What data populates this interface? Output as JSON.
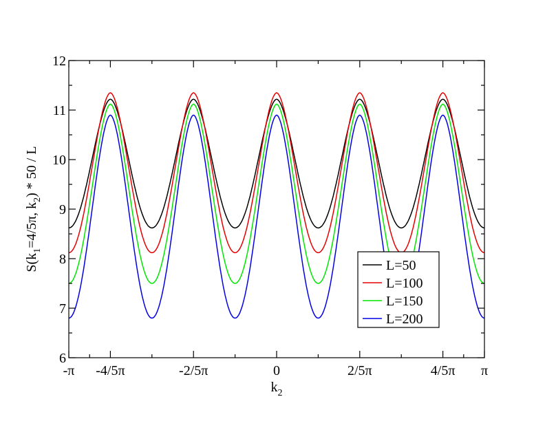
{
  "chart_data": {
    "type": "line",
    "xlabel": "k",
    "xlabel_sub": "2",
    "ylabel_parts": {
      "p1": "S(k",
      "p1_sub": "1",
      "p2": "=4/5π, k",
      "p2_sub": "2",
      "p3": ") * 50 / L"
    },
    "xlim": [
      -3.14159,
      3.14159
    ],
    "ylim": [
      6,
      12
    ],
    "x_ticks": [
      {
        "value": -3.14159,
        "label": "-π"
      },
      {
        "value": -2.51327,
        "label": "-4/5π"
      },
      {
        "value": -1.25664,
        "label": "-2/5π"
      },
      {
        "value": 0,
        "label": "0"
      },
      {
        "value": 1.25664,
        "label": "2/5π"
      },
      {
        "value": 2.51327,
        "label": "4/5π"
      },
      {
        "value": 3.14159,
        "label": "π"
      }
    ],
    "y_ticks": [
      {
        "value": 6,
        "label": "6"
      },
      {
        "value": 7,
        "label": "7"
      },
      {
        "value": 8,
        "label": "8"
      },
      {
        "value": 9,
        "label": "9"
      },
      {
        "value": 10,
        "label": "10"
      },
      {
        "value": 11,
        "label": "11"
      },
      {
        "value": 12,
        "label": "12"
      }
    ],
    "legend_placement": "lower-right",
    "period": 1.25664,
    "series": [
      {
        "name": "L=50",
        "color": "#000000",
        "peak": 11.22,
        "trough": 8.62
      },
      {
        "name": "L=100",
        "color": "#e60000",
        "peak": 11.35,
        "trough": 8.12
      },
      {
        "name": "L=150",
        "color": "#00e600",
        "peak": 11.12,
        "trough": 7.5
      },
      {
        "name": "L=200",
        "color": "#0000e6",
        "peak": 10.9,
        "trough": 6.8
      }
    ]
  }
}
